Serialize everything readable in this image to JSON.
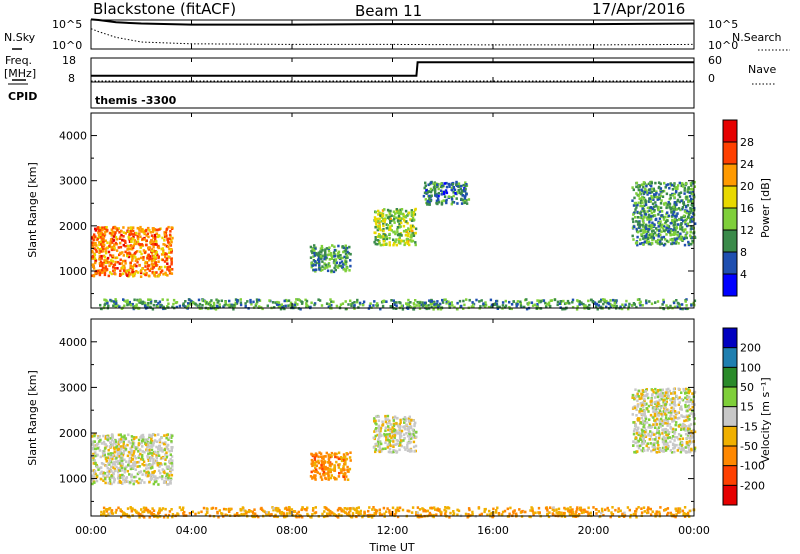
{
  "header": {
    "radar": "Blackstone (fitACF)",
    "beam": "Beam 11",
    "date": "17/Apr/2016"
  },
  "noise_panel": {
    "left_label": "N.Sky",
    "right_label": "N.Search",
    "left_ticks": [
      "10^5",
      "10^0"
    ],
    "right_ticks": [
      "10^5",
      "10^0"
    ]
  },
  "freq_panel": {
    "left_label_top": "Freq.",
    "left_label_unit": "[MHz]",
    "left_ticks": [
      "18",
      "8"
    ],
    "right_label": "Nave",
    "right_ticks": [
      "60",
      "0"
    ]
  },
  "cpid_panel": {
    "label": "CPID",
    "value": "themis -3300"
  },
  "power_panel": {
    "ylabel": "Slant Range [km]",
    "colorbar_label": "Power [dB]",
    "colorbar_ticks": [
      "28",
      "24",
      "20",
      "16",
      "12",
      "8",
      "4"
    ]
  },
  "velocity_panel": {
    "ylabel": "Slant Range [km]",
    "colorbar_label": "Velocity [m s⁻¹]",
    "colorbar_ticks": [
      "200",
      "100",
      "50",
      "15",
      "-15",
      "-50",
      "-100",
      "-200"
    ]
  },
  "xaxis": {
    "label": "Time UT",
    "ticks": [
      "00:00",
      "04:00",
      "08:00",
      "12:00",
      "16:00",
      "20:00",
      "00:00"
    ]
  },
  "colors": {
    "power_scale": [
      "#0000ff",
      "#1f4fb0",
      "#3a8a4a",
      "#7fcf3a",
      "#e8d800",
      "#ff9a00",
      "#ff4000",
      "#e60000"
    ],
    "velocity_scale": [
      "#e60000",
      "#ff4000",
      "#ff8800",
      "#f0b000",
      "#c8c8c8",
      "#7fcf3a",
      "#2a8a2a",
      "#1f7fb0",
      "#0000c0"
    ]
  },
  "chart_data": [
    {
      "type": "line",
      "title": "Blackstone (fitACF)  Beam 11  17/Apr/2016",
      "series": [
        {
          "name": "N.Sky",
          "x": [
            0,
            0.3,
            1,
            2,
            4,
            8,
            12,
            16,
            20,
            24
          ],
          "y_log10": [
            5.1,
            5.0,
            4.6,
            4.4,
            4.2,
            4.2,
            4.3,
            4.3,
            4.3,
            4.4
          ]
        },
        {
          "name": "N.Search",
          "x": [
            0,
            0.3,
            1,
            2,
            4,
            8,
            12,
            16,
            20,
            24
          ],
          "y_log10": [
            3.5,
            3.0,
            2.0,
            1.2,
            0.9,
            0.8,
            0.8,
            0.7,
            0.7,
            0.8
          ]
        }
      ],
      "yrange_log10": [
        0,
        5
      ],
      "xrange_hours": [
        0,
        24
      ]
    },
    {
      "type": "line",
      "series": [
        {
          "name": "Freq.",
          "x": [
            0,
            12.95,
            13.0,
            24
          ],
          "y": [
            10.6,
            10.6,
            16.2,
            16.2
          ]
        },
        {
          "name": "Nave",
          "x": [
            0,
            24
          ],
          "y": [
            0,
            0
          ]
        }
      ],
      "ylim_freq": [
        8,
        18
      ],
      "ylim_nave": [
        0,
        60
      ]
    },
    {
      "type": "heatmap",
      "title": "Power [dB]",
      "xlabel": "Time UT",
      "ylabel": "Slant Range [km]",
      "x_range_hours": [
        0,
        24
      ],
      "y_range_km": [
        180,
        4500
      ],
      "color_range": [
        0,
        30
      ],
      "regions": [
        {
          "t0": 0.0,
          "t1": 3.2,
          "range0": 900,
          "range1": 2000,
          "power_db": 22
        },
        {
          "t0": 0.3,
          "t1": 24.0,
          "range0": 180,
          "range1": 400,
          "power_db": 10
        },
        {
          "t0": 8.7,
          "t1": 10.3,
          "range0": 1000,
          "range1": 1600,
          "power_db": 10
        },
        {
          "t0": 11.2,
          "t1": 12.9,
          "range0": 1600,
          "range1": 2400,
          "power_db": 14
        },
        {
          "t0": 13.2,
          "t1": 15.0,
          "range0": 2500,
          "range1": 3000,
          "power_db": 8
        },
        {
          "t0": 21.5,
          "t1": 24.0,
          "range0": 1600,
          "range1": 3000,
          "power_db": 10
        }
      ]
    },
    {
      "type": "heatmap",
      "title": "Velocity [m s-1]",
      "xlabel": "Time UT",
      "ylabel": "Slant Range [km]",
      "x_range_hours": [
        0,
        24
      ],
      "y_range_km": [
        180,
        4500
      ],
      "color_range": [
        -200,
        200
      ],
      "regions": [
        {
          "t0": 0.0,
          "t1": 3.2,
          "range0": 900,
          "range1": 2000,
          "velocity": 0
        },
        {
          "t0": 0.3,
          "t1": 24.0,
          "range0": 180,
          "range1": 400,
          "velocity": -60
        },
        {
          "t0": 8.7,
          "t1": 10.3,
          "range0": 1000,
          "range1": 1600,
          "velocity": -80
        },
        {
          "t0": 11.2,
          "t1": 12.9,
          "range0": 1600,
          "range1": 2400,
          "velocity": 0
        },
        {
          "t0": 21.5,
          "t1": 24.0,
          "range0": 1600,
          "range1": 3000,
          "velocity": 0
        }
      ]
    }
  ]
}
